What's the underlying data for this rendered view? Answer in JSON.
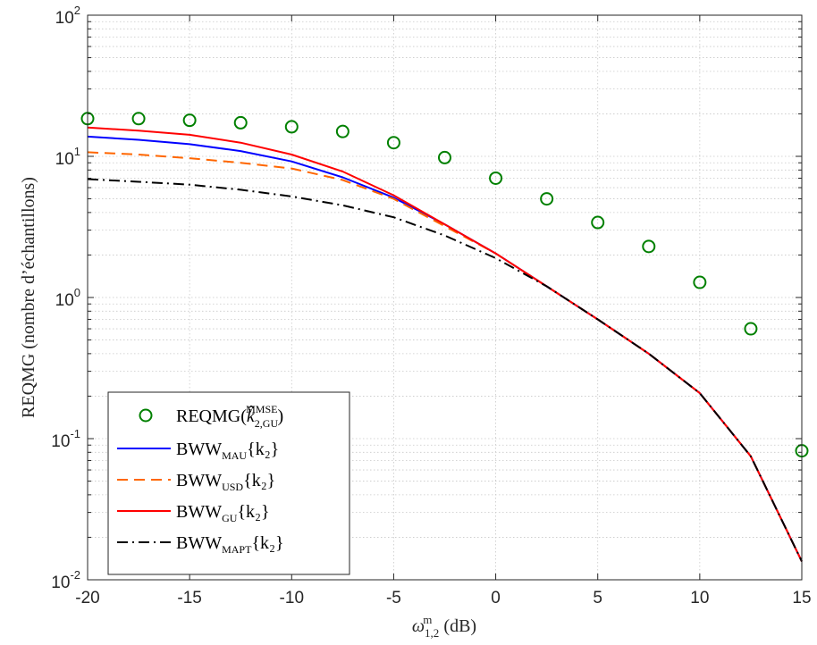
{
  "chart_data": {
    "type": "line",
    "xlabel": {
      "symbol": "ω",
      "sub": "1,2",
      "sup": "m",
      "unit": " (dB)"
    },
    "ylabel": "REQMG (nombre d’échantillons)",
    "xlim": [
      -20,
      15
    ],
    "ylim": [
      0.01,
      100
    ],
    "yscale": "log",
    "grid": true,
    "legend_position": "bottom-left",
    "x_ticks": [
      -20,
      -15,
      -10,
      -5,
      0,
      5,
      10,
      15
    ],
    "x_tick_labels": [
      "-20",
      "-15",
      "-10",
      "-5",
      "0",
      "5",
      "10",
      "15"
    ],
    "y_ticks": [
      {
        "value": 0.01,
        "base": "10",
        "exp": "-2"
      },
      {
        "value": 0.1,
        "base": "10",
        "exp": "-1"
      },
      {
        "value": 1,
        "base": "10",
        "exp": "0"
      },
      {
        "value": 10,
        "base": "10",
        "exp": "1"
      },
      {
        "value": 100,
        "base": "10",
        "exp": "2"
      }
    ],
    "x": [
      -20,
      -17.5,
      -15,
      -12.5,
      -10,
      -7.5,
      -5,
      -2.5,
      0,
      2.5,
      5,
      7.5,
      10,
      12.5,
      15
    ],
    "series": [
      {
        "key": "reqmg-mmse",
        "style": "markers",
        "color": "#008000",
        "legend": {
          "pre": "REQMG(",
          "main": "k̂",
          "sub": "2,GU",
          "sup": "MMSE",
          "post": ")"
        },
        "values": [
          18.5,
          18.5,
          18.0,
          17.3,
          16.2,
          15.0,
          12.5,
          9.8,
          7.0,
          5.0,
          3.4,
          2.3,
          1.28,
          0.6,
          0.082
        ]
      },
      {
        "key": "bww-mau",
        "style": "solid",
        "color": "#0000ff",
        "legend": {
          "pre": "BWW",
          "sub": "MAU",
          "post": "{k₂}"
        },
        "values": [
          13.8,
          13.1,
          12.2,
          10.9,
          9.2,
          7.1,
          5.1,
          3.3,
          2.05,
          1.2,
          0.7,
          0.4,
          0.21,
          0.075,
          0.0135
        ]
      },
      {
        "key": "bww-usd",
        "style": "dashed",
        "color": "#ff6600",
        "legend": {
          "pre": "BWW",
          "sub": "USD",
          "post": "{k₂}"
        },
        "values": [
          10.7,
          10.3,
          9.7,
          9.0,
          8.2,
          6.8,
          5.0,
          3.2,
          2.05,
          1.2,
          0.7,
          0.4,
          0.21,
          0.075,
          0.0135
        ]
      },
      {
        "key": "bww-gu",
        "style": "solid",
        "color": "#ff0000",
        "legend": {
          "pre": "BWW",
          "sub": "GU",
          "post": "{k₂}"
        },
        "values": [
          16.0,
          15.2,
          14.2,
          12.5,
          10.3,
          7.8,
          5.3,
          3.3,
          2.05,
          1.2,
          0.7,
          0.4,
          0.21,
          0.075,
          0.0135
        ]
      },
      {
        "key": "bww-mapt",
        "style": "dashdot",
        "color": "#000000",
        "legend": {
          "pre": "BWW",
          "sub": "MAPT",
          "post": "{k₂}"
        },
        "values": [
          6.9,
          6.6,
          6.3,
          5.8,
          5.2,
          4.5,
          3.7,
          2.75,
          1.9,
          1.2,
          0.7,
          0.4,
          0.21,
          0.075,
          0.0135
        ]
      }
    ]
  }
}
